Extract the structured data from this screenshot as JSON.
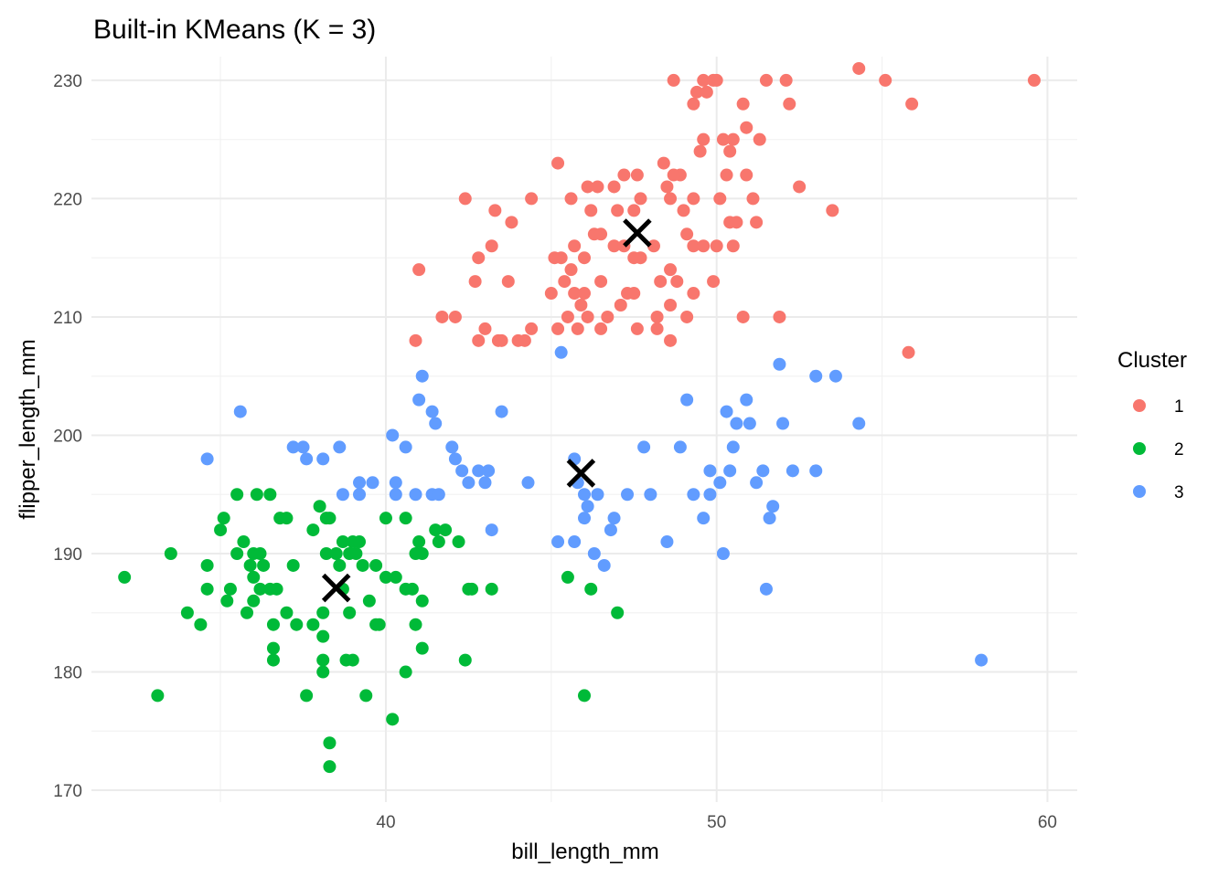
{
  "chart_data": {
    "type": "scatter",
    "title": "Built-in KMeans (K = 3)",
    "xlabel": "bill_length_mm",
    "ylabel": "flipper_length_mm",
    "xlim": [
      31.1,
      60.9
    ],
    "ylim": [
      169,
      232
    ],
    "x_ticks": [
      40,
      50,
      60
    ],
    "y_ticks": [
      170,
      180,
      190,
      200,
      210,
      220,
      230
    ],
    "grid": true,
    "legend": {
      "title": "Cluster",
      "position": "right"
    },
    "series": [
      {
        "name": "1",
        "color": "#F8766D",
        "points": [
          [
            48.7,
            230
          ],
          [
            49.3,
            228
          ],
          [
            49.6,
            230
          ],
          [
            49.9,
            230
          ],
          [
            50.0,
            230
          ],
          [
            50.8,
            228
          ],
          [
            51.5,
            230
          ],
          [
            52.1,
            230
          ],
          [
            52.2,
            228
          ],
          [
            54.3,
            231
          ],
          [
            55.1,
            230
          ],
          [
            55.9,
            228
          ],
          [
            59.6,
            230
          ],
          [
            49.4,
            229
          ],
          [
            49.7,
            229
          ],
          [
            50.9,
            226
          ],
          [
            51.3,
            225
          ],
          [
            50.5,
            225
          ],
          [
            49.5,
            224
          ],
          [
            49.6,
            225
          ],
          [
            50.2,
            225
          ],
          [
            50.4,
            224
          ],
          [
            50.9,
            222
          ],
          [
            50.3,
            222
          ],
          [
            48.4,
            223
          ],
          [
            48.9,
            222
          ],
          [
            45.2,
            223
          ],
          [
            47.2,
            222
          ],
          [
            47.6,
            222
          ],
          [
            48.5,
            221
          ],
          [
            48.7,
            222
          ],
          [
            46.1,
            221
          ],
          [
            46.4,
            221
          ],
          [
            46.9,
            221
          ],
          [
            52.5,
            221
          ],
          [
            53.5,
            219
          ],
          [
            44.4,
            220
          ],
          [
            45.6,
            220
          ],
          [
            47.7,
            220
          ],
          [
            48.6,
            220
          ],
          [
            49.3,
            220
          ],
          [
            50.1,
            220
          ],
          [
            51.1,
            220
          ],
          [
            42.4,
            220
          ],
          [
            43.3,
            219
          ],
          [
            43.8,
            218
          ],
          [
            46.2,
            219
          ],
          [
            47.0,
            219
          ],
          [
            47.5,
            219
          ],
          [
            49.0,
            219
          ],
          [
            50.4,
            218
          ],
          [
            50.6,
            218
          ],
          [
            51.2,
            218
          ],
          [
            41.0,
            214
          ],
          [
            42.8,
            215
          ],
          [
            43.2,
            216
          ],
          [
            43.7,
            213
          ],
          [
            42.7,
            213
          ],
          [
            45.1,
            215
          ],
          [
            45.3,
            215
          ],
          [
            45.6,
            214
          ],
          [
            45.7,
            216
          ],
          [
            46.0,
            215
          ],
          [
            46.3,
            217
          ],
          [
            46.5,
            217
          ],
          [
            46.9,
            216
          ],
          [
            47.2,
            216
          ],
          [
            47.5,
            215
          ],
          [
            47.7,
            215
          ],
          [
            48.1,
            216
          ],
          [
            48.6,
            214
          ],
          [
            49.1,
            217
          ],
          [
            49.3,
            216
          ],
          [
            49.6,
            216
          ],
          [
            50.0,
            216
          ],
          [
            50.5,
            216
          ],
          [
            45.4,
            213
          ],
          [
            45.7,
            212
          ],
          [
            46.0,
            212
          ],
          [
            46.5,
            213
          ],
          [
            47.3,
            212
          ],
          [
            47.5,
            212
          ],
          [
            48.3,
            213
          ],
          [
            48.8,
            213
          ],
          [
            49.3,
            212
          ],
          [
            49.9,
            213
          ],
          [
            45.0,
            212
          ],
          [
            45.5,
            210
          ],
          [
            45.9,
            211
          ],
          [
            46.7,
            210
          ],
          [
            47.1,
            211
          ],
          [
            48.2,
            210
          ],
          [
            48.6,
            211
          ],
          [
            49.1,
            210
          ],
          [
            50.8,
            210
          ],
          [
            51.9,
            210
          ],
          [
            40.9,
            208
          ],
          [
            41.7,
            210
          ],
          [
            42.1,
            210
          ],
          [
            42.8,
            208
          ],
          [
            43.0,
            209
          ],
          [
            43.4,
            208
          ],
          [
            43.5,
            208
          ],
          [
            44.0,
            208
          ],
          [
            44.2,
            208
          ],
          [
            44.4,
            209
          ],
          [
            45.2,
            209
          ],
          [
            45.8,
            209
          ],
          [
            46.1,
            210
          ],
          [
            46.5,
            209
          ],
          [
            47.6,
            209
          ],
          [
            48.2,
            209
          ],
          [
            48.6,
            208
          ],
          [
            55.8,
            207
          ]
        ]
      },
      {
        "name": "2",
        "color": "#00BA38",
        "points": [
          [
            32.1,
            188
          ],
          [
            33.1,
            178
          ],
          [
            33.5,
            190
          ],
          [
            34.0,
            185
          ],
          [
            34.4,
            184
          ],
          [
            34.6,
            187
          ],
          [
            34.6,
            189
          ],
          [
            35.0,
            192
          ],
          [
            35.1,
            193
          ],
          [
            35.2,
            186
          ],
          [
            35.3,
            187
          ],
          [
            35.5,
            190
          ],
          [
            35.5,
            195
          ],
          [
            35.7,
            191
          ],
          [
            35.8,
            185
          ],
          [
            35.9,
            189
          ],
          [
            36.0,
            190
          ],
          [
            36.0,
            188
          ],
          [
            36.0,
            186
          ],
          [
            36.1,
            195
          ],
          [
            36.2,
            187
          ],
          [
            36.2,
            190
          ],
          [
            36.3,
            189
          ],
          [
            36.5,
            187
          ],
          [
            36.5,
            195
          ],
          [
            36.6,
            184
          ],
          [
            36.6,
            181
          ],
          [
            36.6,
            182
          ],
          [
            36.7,
            187
          ],
          [
            36.8,
            193
          ],
          [
            37.0,
            185
          ],
          [
            37.0,
            193
          ],
          [
            37.2,
            189
          ],
          [
            37.3,
            184
          ],
          [
            37.6,
            178
          ],
          [
            37.8,
            184
          ],
          [
            37.8,
            192
          ],
          [
            38.0,
            194
          ],
          [
            38.1,
            183
          ],
          [
            38.1,
            181
          ],
          [
            38.1,
            180
          ],
          [
            38.1,
            185
          ],
          [
            38.2,
            193
          ],
          [
            38.2,
            190
          ],
          [
            38.3,
            174
          ],
          [
            38.3,
            172
          ],
          [
            38.3,
            193
          ],
          [
            38.5,
            190
          ],
          [
            38.6,
            189
          ],
          [
            38.7,
            191
          ],
          [
            38.7,
            187
          ],
          [
            38.8,
            181
          ],
          [
            38.9,
            190
          ],
          [
            38.9,
            185
          ],
          [
            39.0,
            191
          ],
          [
            39.0,
            181
          ],
          [
            39.1,
            190
          ],
          [
            39.2,
            191
          ],
          [
            39.3,
            189
          ],
          [
            39.4,
            178
          ],
          [
            39.5,
            186
          ],
          [
            39.7,
            189
          ],
          [
            39.7,
            184
          ],
          [
            39.8,
            184
          ],
          [
            40.0,
            188
          ],
          [
            40.0,
            193
          ],
          [
            40.2,
            176
          ],
          [
            40.3,
            188
          ],
          [
            40.6,
            187
          ],
          [
            40.6,
            180
          ],
          [
            40.6,
            193
          ],
          [
            40.8,
            187
          ],
          [
            40.9,
            184
          ],
          [
            40.9,
            190
          ],
          [
            41.0,
            191
          ],
          [
            41.1,
            186
          ],
          [
            41.1,
            182
          ],
          [
            41.1,
            190
          ],
          [
            41.5,
            192
          ],
          [
            41.6,
            191
          ],
          [
            41.8,
            192
          ],
          [
            42.2,
            191
          ],
          [
            42.4,
            181
          ],
          [
            42.5,
            187
          ],
          [
            42.6,
            187
          ],
          [
            43.2,
            187
          ],
          [
            45.5,
            188
          ],
          [
            46.0,
            178
          ],
          [
            46.2,
            187
          ],
          [
            47.0,
            185
          ]
        ]
      },
      {
        "name": "3",
        "color": "#619CFF",
        "points": [
          [
            34.6,
            198
          ],
          [
            35.6,
            202
          ],
          [
            37.2,
            199
          ],
          [
            37.5,
            199
          ],
          [
            37.6,
            198
          ],
          [
            38.1,
            198
          ],
          [
            38.6,
            199
          ],
          [
            38.7,
            195
          ],
          [
            39.2,
            195
          ],
          [
            39.2,
            196
          ],
          [
            39.6,
            196
          ],
          [
            40.2,
            200
          ],
          [
            40.3,
            195
          ],
          [
            40.3,
            196
          ],
          [
            40.6,
            199
          ],
          [
            40.9,
            195
          ],
          [
            41.0,
            203
          ],
          [
            41.1,
            205
          ],
          [
            41.4,
            202
          ],
          [
            41.4,
            195
          ],
          [
            41.5,
            201
          ],
          [
            41.6,
            195
          ],
          [
            42.0,
            199
          ],
          [
            42.1,
            198
          ],
          [
            42.3,
            197
          ],
          [
            42.5,
            196
          ],
          [
            42.8,
            197
          ],
          [
            43.0,
            196
          ],
          [
            43.1,
            197
          ],
          [
            43.2,
            192
          ],
          [
            43.5,
            202
          ],
          [
            44.3,
            196
          ],
          [
            45.2,
            191
          ],
          [
            45.3,
            207
          ],
          [
            45.7,
            198
          ],
          [
            45.7,
            191
          ],
          [
            45.8,
            196
          ],
          [
            46.0,
            195
          ],
          [
            46.0,
            193
          ],
          [
            46.1,
            194
          ],
          [
            46.3,
            190
          ],
          [
            46.4,
            195
          ],
          [
            46.6,
            189
          ],
          [
            46.8,
            192
          ],
          [
            46.9,
            193
          ],
          [
            47.3,
            195
          ],
          [
            47.8,
            199
          ],
          [
            48.0,
            195
          ],
          [
            48.5,
            191
          ],
          [
            48.9,
            199
          ],
          [
            49.1,
            203
          ],
          [
            49.3,
            195
          ],
          [
            49.6,
            193
          ],
          [
            49.8,
            195
          ],
          [
            49.8,
            197
          ],
          [
            50.1,
            196
          ],
          [
            50.2,
            190
          ],
          [
            50.3,
            202
          ],
          [
            50.4,
            197
          ],
          [
            50.5,
            199
          ],
          [
            50.6,
            201
          ],
          [
            50.9,
            203
          ],
          [
            51.0,
            201
          ],
          [
            51.2,
            196
          ],
          [
            51.4,
            197
          ],
          [
            51.5,
            187
          ],
          [
            51.6,
            193
          ],
          [
            51.7,
            194
          ],
          [
            51.9,
            206
          ],
          [
            52.0,
            201
          ],
          [
            52.3,
            197
          ],
          [
            53.0,
            197
          ],
          [
            53.0,
            205
          ],
          [
            53.6,
            205
          ],
          [
            54.3,
            201
          ],
          [
            58.0,
            181
          ]
        ]
      }
    ],
    "centroids": [
      {
        "cluster": "1",
        "x": 47.6,
        "y": 217.1
      },
      {
        "cluster": "2",
        "x": 38.5,
        "y": 187.1
      },
      {
        "cluster": "3",
        "x": 45.9,
        "y": 196.8
      }
    ]
  }
}
